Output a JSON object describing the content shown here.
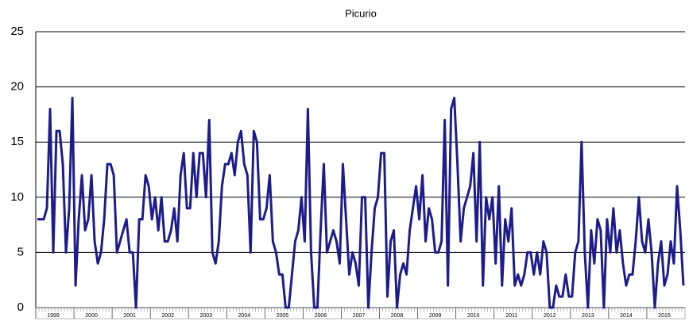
{
  "chart_data": {
    "type": "line",
    "title": "Picurio",
    "categories": [
      null,
      null,
      null,
      null,
      null,
      "1999",
      null,
      null,
      null,
      null,
      null,
      null,
      null,
      null,
      null,
      null,
      null,
      "2000",
      null,
      null,
      null,
      null,
      null,
      null,
      null,
      null,
      null,
      null,
      null,
      "2001",
      null,
      null,
      null,
      null,
      null,
      null,
      null,
      null,
      null,
      null,
      null,
      "2002",
      null,
      null,
      null,
      null,
      null,
      null,
      null,
      null,
      null,
      null,
      null,
      "2003",
      null,
      null,
      null,
      null,
      null,
      null,
      null,
      null,
      null,
      null,
      null,
      "2004",
      null,
      null,
      null,
      null,
      null,
      null,
      null,
      null,
      null,
      null,
      null,
      "2005",
      null,
      null,
      null,
      null,
      null,
      null,
      null,
      null,
      null,
      null,
      null,
      "2006",
      null,
      null,
      null,
      null,
      null,
      null,
      null,
      null,
      null,
      null,
      null,
      "2007",
      null,
      null,
      null,
      null,
      null,
      null,
      null,
      null,
      null,
      null,
      null,
      "2008",
      null,
      null,
      null,
      null,
      null,
      null,
      null,
      null,
      null,
      null,
      null,
      "2009",
      null,
      null,
      null,
      null,
      null,
      null,
      null,
      null,
      null,
      null,
      null,
      "2010",
      null,
      null,
      null,
      null,
      null,
      null,
      null,
      null,
      null,
      null,
      null,
      "2011",
      null,
      null,
      null,
      null,
      null,
      null,
      null,
      null,
      null,
      null,
      null,
      "2012",
      null,
      null,
      null,
      null,
      null,
      null,
      null,
      null,
      null,
      null,
      null,
      "2013",
      null,
      null,
      null,
      null,
      null,
      null,
      null,
      null,
      null,
      null,
      null,
      "2014",
      null,
      null,
      null,
      null,
      null,
      null,
      null,
      null,
      null,
      null,
      null,
      "2015",
      null,
      null,
      null,
      null,
      null,
      null
    ],
    "values": [
      8,
      8,
      8,
      9,
      18,
      5,
      16,
      16,
      13,
      5,
      9,
      19,
      2,
      8,
      12,
      7,
      8,
      12,
      6,
      4,
      5,
      8,
      13,
      13,
      12,
      5,
      6,
      7,
      8,
      5,
      5,
      0,
      8,
      8,
      12,
      11,
      8,
      10,
      7,
      10,
      6,
      6,
      7,
      9,
      6,
      12,
      14,
      9,
      9,
      14,
      10,
      14,
      14,
      10,
      17,
      5,
      4,
      6,
      11,
      13,
      13,
      14,
      12,
      15,
      16,
      13,
      12,
      5,
      16,
      15,
      8,
      8,
      9,
      12,
      6,
      5,
      3,
      3,
      0,
      0,
      3,
      6,
      7,
      10,
      6,
      18,
      5,
      0,
      0,
      7,
      13,
      5,
      6,
      7,
      6,
      4,
      13,
      8,
      3,
      5,
      4,
      2,
      10,
      10,
      0,
      5,
      9,
      10,
      14,
      14,
      1,
      6,
      7,
      0,
      3,
      4,
      3,
      7,
      9,
      11,
      8,
      12,
      6,
      9,
      8,
      5,
      5,
      6,
      17,
      2,
      18,
      19,
      13,
      6,
      9,
      10,
      11,
      14,
      6,
      15,
      2,
      10,
      8,
      10,
      4,
      11,
      2,
      8,
      6,
      9,
      2,
      3,
      2,
      3,
      5,
      5,
      3,
      5,
      3,
      6,
      5,
      0,
      0,
      2,
      1,
      1,
      3,
      1,
      1,
      5,
      6,
      15,
      5,
      0,
      7,
      4,
      8,
      7,
      0,
      8,
      5,
      9,
      5,
      7,
      4,
      2,
      3,
      3,
      6,
      10,
      6,
      5,
      8,
      5,
      0,
      4,
      6,
      2,
      3,
      6,
      4,
      11,
      7,
      2
    ],
    "color": "#1c1c8c",
    "ylim": [
      0,
      25
    ],
    "yticks": [
      0,
      5,
      10,
      15,
      20,
      25
    ],
    "grid": true
  }
}
